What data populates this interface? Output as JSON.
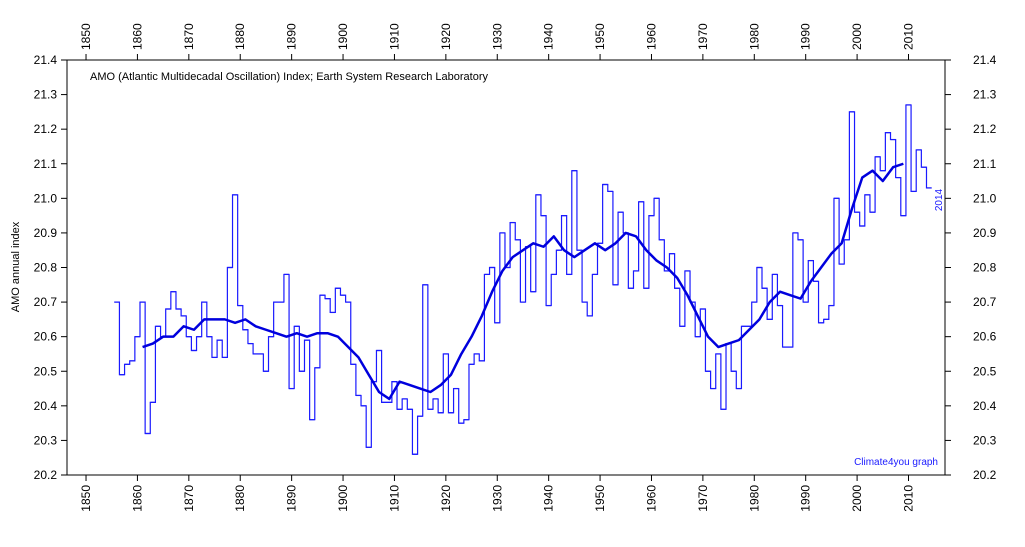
{
  "chart_data": {
    "type": "step_line",
    "title": "AMO (Atlantic Multidecadal Oscillation) Index; Earth System Research Laboratory",
    "ylabel": "AMO annual index",
    "annotations": [
      "2014",
      "Climate4you graph"
    ],
    "xlim": [
      1846.3,
      2017.1
    ],
    "ylim": [
      20.2,
      21.4
    ],
    "xticks": [
      1850,
      1860,
      1870,
      1880,
      1890,
      1900,
      1910,
      1920,
      1930,
      1940,
      1950,
      1960,
      1970,
      1980,
      1990,
      2000,
      2010
    ],
    "yticks": [
      20.2,
      20.3,
      20.4,
      20.5,
      20.6,
      20.7,
      20.8,
      20.9,
      {
        "value": 21,
        "label": "21.0"
      },
      21.1,
      21.2,
      21.3,
      21.4
    ],
    "series": [
      {
        "color": "#1a1aff",
        "style": "step",
        "x": [
          1856,
          1857,
          1858,
          1859,
          1860,
          1861,
          1862,
          1863,
          1864,
          1865,
          1866,
          1867,
          1868,
          1869,
          1870,
          1871,
          1872,
          1873,
          1874,
          1875,
          1876,
          1877,
          1878,
          1879,
          1880,
          1881,
          1882,
          1883,
          1884,
          1885,
          1886,
          1887,
          1888,
          1889,
          1890,
          1891,
          1892,
          1893,
          1894,
          1895,
          1896,
          1897,
          1898,
          1899,
          1900,
          1901,
          1902,
          1903,
          1904,
          1905,
          1906,
          1907,
          1908,
          1909,
          1910,
          1911,
          1912,
          1913,
          1914,
          1915,
          1916,
          1917,
          1918,
          1919,
          1920,
          1921,
          1922,
          1923,
          1924,
          1925,
          1926,
          1927,
          1928,
          1929,
          1930,
          1931,
          1932,
          1933,
          1934,
          1935,
          1936,
          1937,
          1938,
          1939,
          1940,
          1941,
          1942,
          1943,
          1944,
          1945,
          1946,
          1947,
          1948,
          1949,
          1950,
          1951,
          1952,
          1953,
          1954,
          1955,
          1956,
          1957,
          1958,
          1959,
          1960,
          1961,
          1962,
          1963,
          1964,
          1965,
          1966,
          1967,
          1968,
          1969,
          1970,
          1971,
          1972,
          1973,
          1974,
          1975,
          1976,
          1977,
          1978,
          1979,
          1980,
          1981,
          1982,
          1983,
          1984,
          1985,
          1986,
          1987,
          1988,
          1989,
          1990,
          1991,
          1992,
          1993,
          1994,
          1995,
          1996,
          1997,
          1998,
          1999,
          2000,
          2001,
          2002,
          2003,
          2004,
          2005,
          2006,
          2007,
          2008,
          2009,
          2010,
          2011,
          2012,
          2013,
          2014
        ],
        "values": [
          20.7,
          20.49,
          20.52,
          20.53,
          20.6,
          20.7,
          20.32,
          20.41,
          20.63,
          20.6,
          20.68,
          20.73,
          20.68,
          20.66,
          20.6,
          20.56,
          20.6,
          20.7,
          20.6,
          20.54,
          20.59,
          20.54,
          20.8,
          21.01,
          20.69,
          20.62,
          20.58,
          20.55,
          20.55,
          20.5,
          20.6,
          20.7,
          20.7,
          20.78,
          20.45,
          20.63,
          20.5,
          20.59,
          20.36,
          20.51,
          20.72,
          20.71,
          20.67,
          20.74,
          20.72,
          20.7,
          20.52,
          20.43,
          20.4,
          20.28,
          20.47,
          20.56,
          20.41,
          20.41,
          20.47,
          20.39,
          20.42,
          20.39,
          20.26,
          20.37,
          20.75,
          20.39,
          20.42,
          20.38,
          20.55,
          20.38,
          20.45,
          20.35,
          20.36,
          20.52,
          20.55,
          20.53,
          20.78,
          20.8,
          20.64,
          20.9,
          20.8,
          20.93,
          20.88,
          20.7,
          20.86,
          20.73,
          21.01,
          20.95,
          20.69,
          20.78,
          20.85,
          20.95,
          20.78,
          21.08,
          20.85,
          20.7,
          20.66,
          20.78,
          20.87,
          21.04,
          21.02,
          20.75,
          20.96,
          20.9,
          20.74,
          20.79,
          20.99,
          20.74,
          20.95,
          21.0,
          20.88,
          20.79,
          20.84,
          20.74,
          20.63,
          20.79,
          20.7,
          20.6,
          20.68,
          20.5,
          20.45,
          20.55,
          20.39,
          20.58,
          20.5,
          20.45,
          20.63,
          20.63,
          20.7,
          20.8,
          20.74,
          20.65,
          20.78,
          20.69,
          20.57,
          20.57,
          20.9,
          20.88,
          20.7,
          20.82,
          20.76,
          20.64,
          20.65,
          20.69,
          21.0,
          20.81,
          20.88,
          21.25,
          20.96,
          20.92,
          21.01,
          20.96,
          21.12,
          21.08,
          21.19,
          21.17,
          21.06,
          20.95,
          21.27,
          21.02,
          21.14,
          21.09,
          21.03
        ]
      },
      {
        "color": "#0000dd",
        "style": "line",
        "x": [
          1861,
          1863,
          1865,
          1867,
          1869,
          1871,
          1873,
          1875,
          1877,
          1879,
          1881,
          1883,
          1885,
          1887,
          1889,
          1891,
          1893,
          1895,
          1897,
          1899,
          1901,
          1903,
          1905,
          1907,
          1909,
          1911,
          1913,
          1915,
          1917,
          1919,
          1921,
          1923,
          1925,
          1927,
          1929,
          1931,
          1933,
          1935,
          1937,
          1939,
          1941,
          1943,
          1945,
          1947,
          1949,
          1951,
          1953,
          1955,
          1957,
          1959,
          1961,
          1963,
          1965,
          1967,
          1969,
          1971,
          1973,
          1975,
          1977,
          1979,
          1981,
          1983,
          1985,
          1987,
          1989,
          1991,
          1993,
          1995,
          1997,
          1999,
          2001,
          2003,
          2005,
          2007,
          2009
        ],
        "values": [
          20.57,
          20.58,
          20.6,
          20.6,
          20.63,
          20.62,
          20.65,
          20.65,
          20.65,
          20.64,
          20.65,
          20.63,
          20.62,
          20.61,
          20.6,
          20.61,
          20.6,
          20.61,
          20.61,
          20.6,
          20.57,
          20.54,
          20.49,
          20.44,
          20.42,
          20.47,
          20.46,
          20.45,
          20.44,
          20.46,
          20.49,
          20.55,
          20.6,
          20.66,
          20.73,
          20.79,
          20.83,
          20.85,
          20.87,
          20.86,
          20.89,
          20.85,
          20.83,
          20.85,
          20.87,
          20.85,
          20.87,
          20.9,
          20.89,
          20.85,
          20.82,
          20.8,
          20.77,
          20.72,
          20.66,
          20.6,
          20.57,
          20.58,
          20.59,
          20.62,
          20.65,
          20.7,
          20.73,
          20.72,
          20.71,
          20.76,
          20.8,
          20.84,
          20.87,
          20.97,
          21.06,
          21.08,
          21.05,
          21.09,
          21.1
        ]
      }
    ]
  }
}
